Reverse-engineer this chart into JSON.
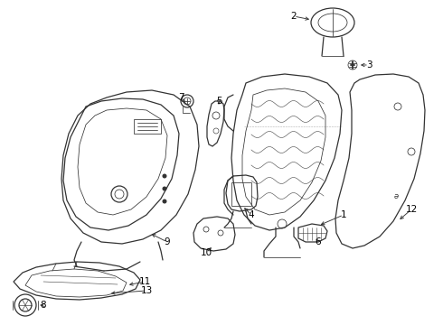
{
  "background_color": "#ffffff",
  "line_color": "#333333",
  "lw": 0.9,
  "tlw": 0.55,
  "label_fontsize": 7.5
}
